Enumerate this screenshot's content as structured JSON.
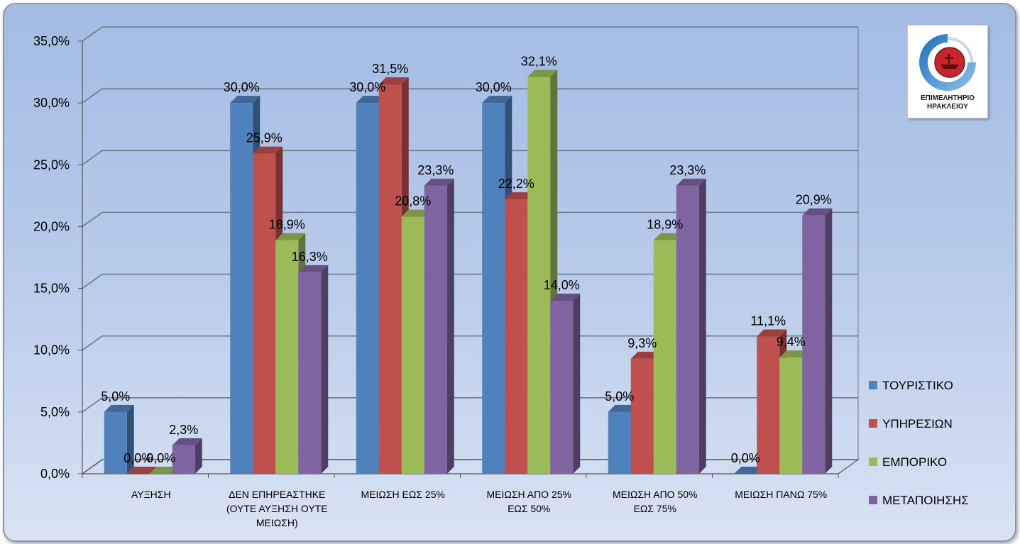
{
  "chart_data": {
    "type": "bar",
    "categories": [
      "ΑΥΞΗΣΗ",
      "ΔΕΝ ΕΠΗΡΕΑΣΤΗΚΕ\n(ΟΥΤΕ ΑΥΞΗΣΗ ΟΥΤΕ\nΜΕΙΩΣΗ)",
      "ΜΕΙΩΣΗ ΕΩΣ 25%",
      "ΜΕΙΩΣΗ ΑΠΟ 25%\nΕΩΣ 50%",
      "ΜΕΙΩΣΗ ΑΠΟ 50%\nΕΩΣ 75%",
      "ΜΕΙΩΣΗ ΠΑΝΩ 75%"
    ],
    "series": [
      {
        "name": "ΤΟΥΡΙΣΤΙΚΟ",
        "color": "#4f81bd",
        "values": [
          5.0,
          30.0,
          30.0,
          30.0,
          5.0,
          0.0
        ],
        "labels": [
          "5,0%",
          "30,0%",
          "30,0%",
          "30,0%",
          "5,0%",
          "0,0%"
        ]
      },
      {
        "name": "ΥΠΗΡΕΣΙΩΝ",
        "color": "#c0504d",
        "values": [
          0.0,
          25.9,
          31.5,
          22.2,
          9.3,
          11.1
        ],
        "labels": [
          "0,0%",
          "25,9%",
          "31,5%",
          "22,2%",
          "9,3%",
          "11,1%"
        ]
      },
      {
        "name": "ΕΜΠΟΡΙΚΟ",
        "color": "#9bbb59",
        "values": [
          0.0,
          18.9,
          20.8,
          32.1,
          18.9,
          9.4
        ],
        "labels": [
          "0,0%",
          "18,9%",
          "20,8%",
          "32,1%",
          "18,9%",
          "9,4%"
        ]
      },
      {
        "name": "ΜΕΤΑΠΟΙΗΣΗΣ",
        "color": "#8064a2",
        "values": [
          2.3,
          16.3,
          23.3,
          14.0,
          23.3,
          20.9
        ],
        "labels": [
          "2,3%",
          "16,3%",
          "23,3%",
          "14,0%",
          "23,3%",
          "20,9%"
        ]
      }
    ],
    "yticks": [
      "0,0%",
      "5,0%",
      "10,0%",
      "15,0%",
      "20,0%",
      "25,0%",
      "30,0%",
      "35,0%"
    ],
    "ylim": [
      0,
      35
    ],
    "grid": true,
    "legend_position": "right",
    "style": "3d-clustered-column"
  },
  "logo": {
    "text": "ΕΠΙΜΕΛΗΤΗΡΙΟ\nΗΡΑΚΛΕΙΟΥ"
  }
}
